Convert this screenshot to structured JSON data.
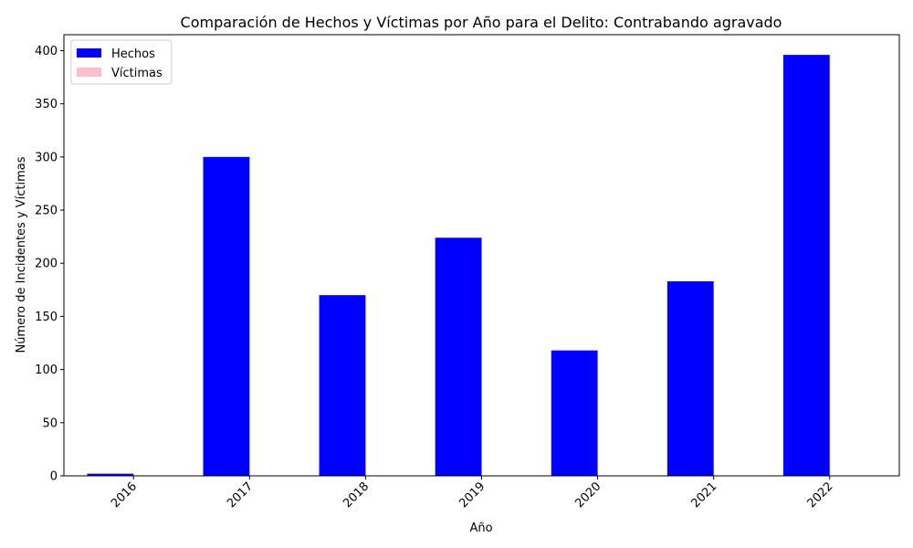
{
  "chart_data": {
    "type": "bar",
    "title": "Comparación de Hechos y Víctimas por Año para el Delito: Contrabando agravado",
    "xlabel": "Año",
    "ylabel": "Número de Incidentes y Víctimas",
    "categories": [
      "2016",
      "2017",
      "2018",
      "2019",
      "2020",
      "2021",
      "2022"
    ],
    "series": [
      {
        "name": "Hechos",
        "color": "#0000ff",
        "values": [
          2,
          300,
          170,
          224,
          118,
          183,
          396
        ]
      },
      {
        "name": "Víctimas",
        "color": "#ffc0cb",
        "values": [
          0,
          0,
          0,
          0,
          0,
          0,
          0
        ]
      }
    ],
    "ylim": [
      0,
      415
    ],
    "yticks": [
      0,
      50,
      100,
      150,
      200,
      250,
      300,
      350,
      400
    ],
    "grid": false,
    "legend_position": "top-left",
    "xtick_rotation": 45
  }
}
